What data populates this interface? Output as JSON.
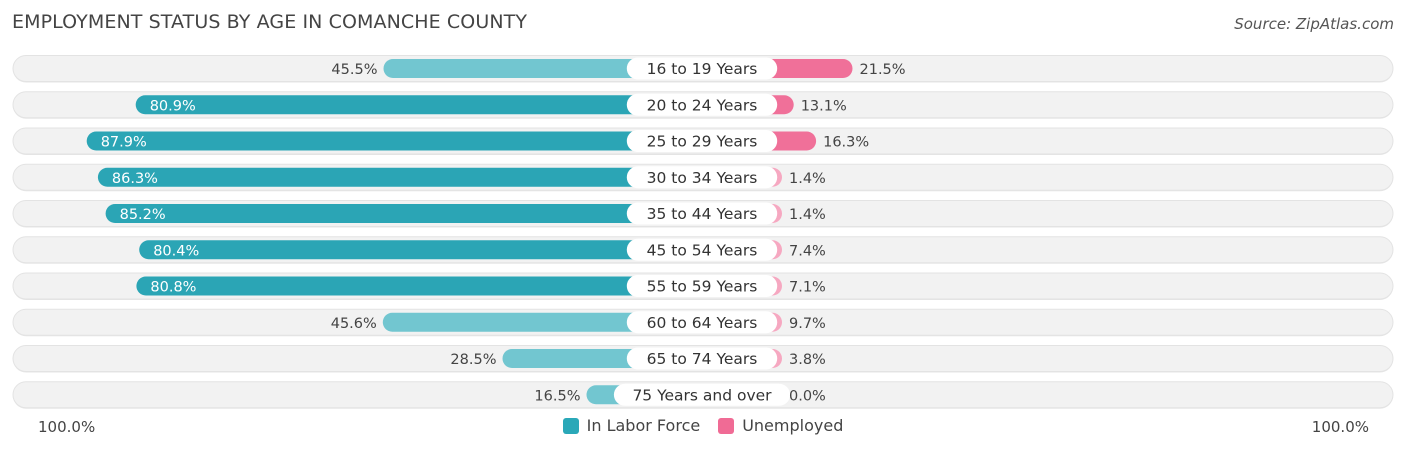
{
  "header": {
    "title": "EMPLOYMENT STATUS BY AGE IN COMANCHE COUNTY",
    "source": "Source: ZipAtlas.com"
  },
  "axis": {
    "left_label": "100.0%",
    "right_label": "100.0%"
  },
  "legend": {
    "items": [
      {
        "label": "In Labor Force",
        "color": "#2aa8b8"
      },
      {
        "label": "Unemployed",
        "color": "#f06b95"
      }
    ]
  },
  "chart_data": {
    "type": "bar",
    "title": "EMPLOYMENT STATUS BY AGE IN COMANCHE COUNTY",
    "orientation": "horizontal-diverging",
    "categories": [
      "16 to 19 Years",
      "20 to 24 Years",
      "25 to 29 Years",
      "30 to 34 Years",
      "35 to 44 Years",
      "45 to 54 Years",
      "55 to 59 Years",
      "60 to 64 Years",
      "65 to 74 Years",
      "75 Years and over"
    ],
    "series": [
      {
        "name": "In Labor Force",
        "values": [
          45.5,
          80.9,
          87.9,
          86.3,
          85.2,
          80.4,
          80.8,
          45.6,
          28.5,
          16.5
        ],
        "labels": [
          "45.5%",
          "80.9%",
          "87.9%",
          "86.3%",
          "85.2%",
          "80.4%",
          "80.8%",
          "45.6%",
          "28.5%",
          "16.5%"
        ]
      },
      {
        "name": "Unemployed",
        "values": [
          21.5,
          13.1,
          16.3,
          1.4,
          1.4,
          7.4,
          7.1,
          9.7,
          3.8,
          0.0
        ],
        "labels": [
          "21.5%",
          "13.1%",
          "16.3%",
          "1.4%",
          "1.4%",
          "7.4%",
          "7.1%",
          "9.7%",
          "3.8%",
          "0.0%"
        ]
      }
    ],
    "xlim_left": [
      0,
      100
    ],
    "xlim_right": [
      0,
      100
    ],
    "legend_position": "bottom-center"
  }
}
